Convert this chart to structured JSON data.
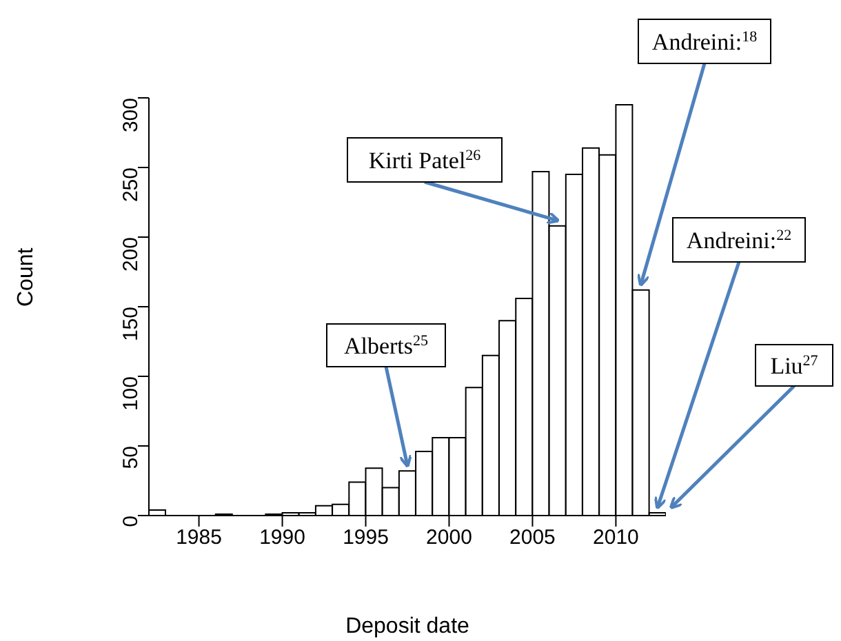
{
  "chart_data": {
    "type": "histogram",
    "xlabel": "Deposit date",
    "ylabel": "Count",
    "color": "#ffffff",
    "bins": [
      1982,
      1983,
      1984,
      1985,
      1986,
      1987,
      1988,
      1989,
      1990,
      1991,
      1992,
      1993,
      1994,
      1995,
      1996,
      1997,
      1998,
      1999,
      2000,
      2001,
      2002,
      2003,
      2004,
      2005,
      2006,
      2007,
      2008,
      2009,
      2010,
      2011,
      2012,
      2013
    ],
    "values": [
      4,
      0,
      0,
      0,
      1,
      0,
      0,
      1,
      2,
      2,
      7,
      8,
      24,
      34,
      20,
      32,
      46,
      56,
      56,
      92,
      115,
      140,
      156,
      247,
      208,
      245,
      264,
      259,
      295,
      162,
      2
    ],
    "xlim": [
      1982,
      2013
    ],
    "xticks": [
      1985,
      1990,
      1995,
      2000,
      2005,
      2010
    ],
    "ylim": [
      0,
      300
    ],
    "yticks": [
      0,
      50,
      100,
      150,
      200,
      250,
      300
    ],
    "grid": false,
    "legend": false,
    "annotations": [
      {
        "text": "Alberts$^{25}$",
        "x": 1997.5,
        "y": 32
      },
      {
        "text": "Kirti Patel$^{26}$",
        "x": 2006.5,
        "y": 208
      },
      {
        "text": "Andreini:$^{18}$",
        "x": 2011.5,
        "y": 162
      },
      {
        "text": "Andreini:$^{22}$",
        "x": 2012.5,
        "y": 2
      },
      {
        "text": "Liu$^{27}$",
        "x": 2013,
        "y": 2
      }
    ]
  }
}
